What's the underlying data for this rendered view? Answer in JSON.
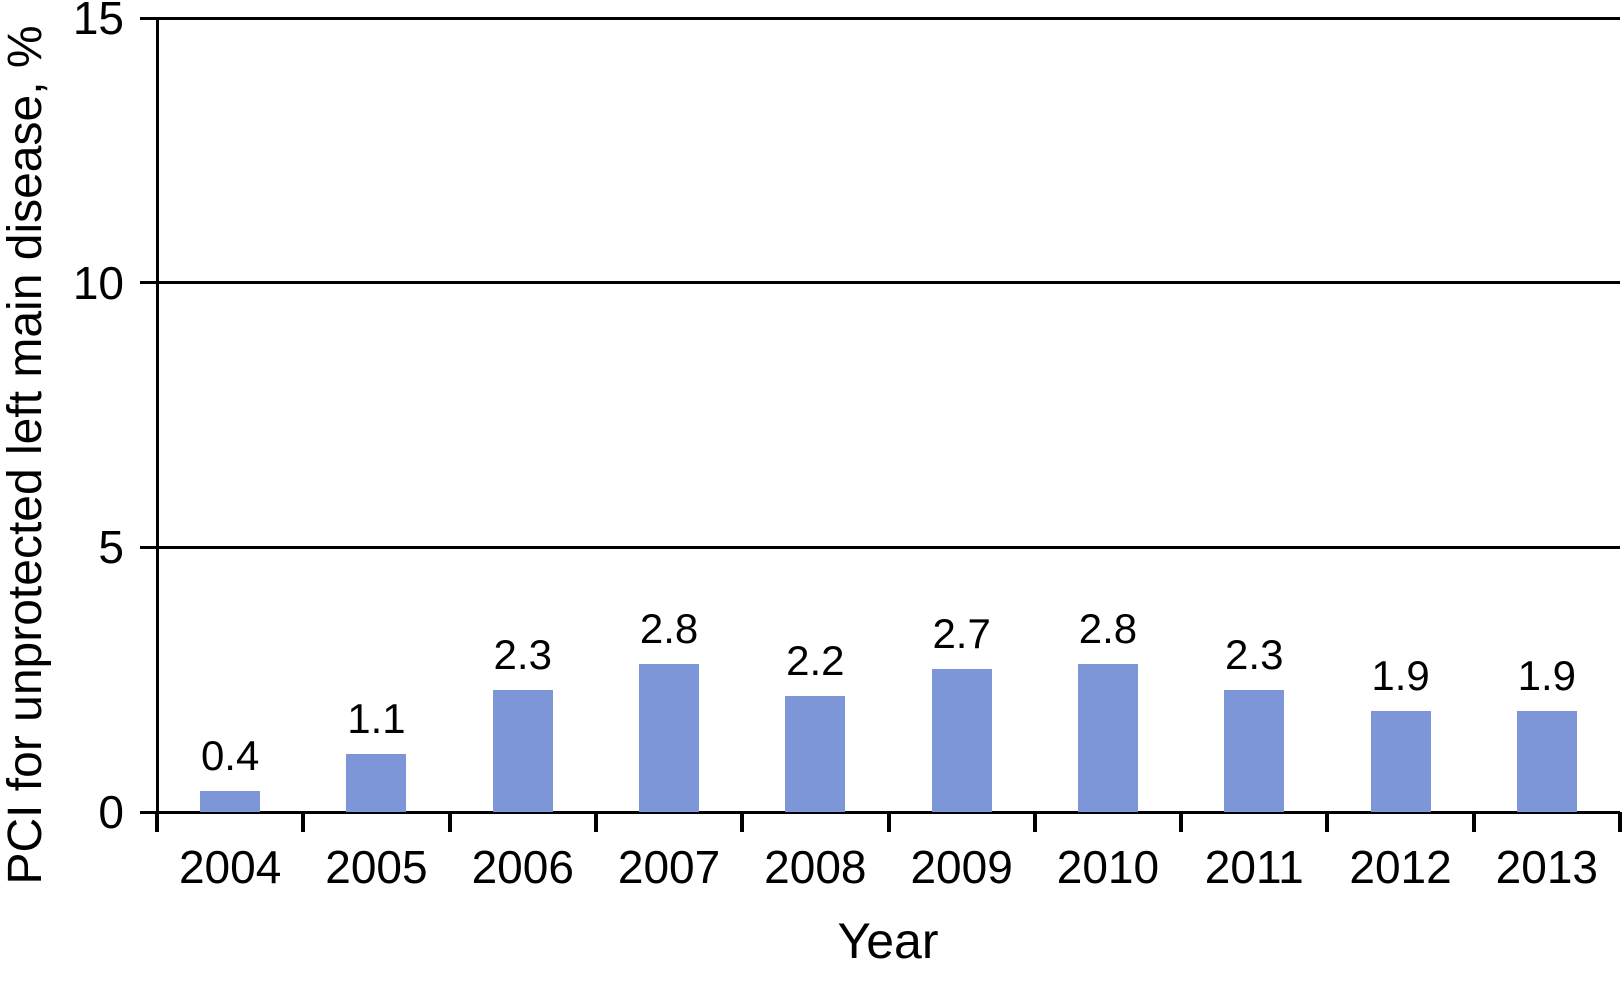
{
  "figure": {
    "background_color": "#ffffff",
    "line_color": "#000000",
    "text_color": "#000000"
  },
  "chart_data": {
    "type": "bar",
    "title": "",
    "xlabel": "Year",
    "ylabel": "PCI for unprotected left main disease, %",
    "categories": [
      "2004",
      "2005",
      "2006",
      "2007",
      "2008",
      "2009",
      "2010",
      "2011",
      "2012",
      "2013"
    ],
    "values": [
      0.4,
      1.1,
      2.3,
      2.8,
      2.2,
      2.7,
      2.8,
      2.3,
      1.9,
      1.9
    ],
    "value_labels": [
      "0.4",
      "1.1",
      "2.3",
      "2.8",
      "2.2",
      "2.7",
      "2.8",
      "2.3",
      "1.9",
      "1.9"
    ],
    "ylim": [
      0,
      15
    ],
    "yticks": [
      0,
      5,
      10,
      15
    ],
    "ytick_labels": [
      "0",
      "5",
      "10",
      "15"
    ],
    "grid": "horizontal",
    "legend": "none",
    "bar_color": "#7D96D8",
    "axis_color": "#000000"
  }
}
